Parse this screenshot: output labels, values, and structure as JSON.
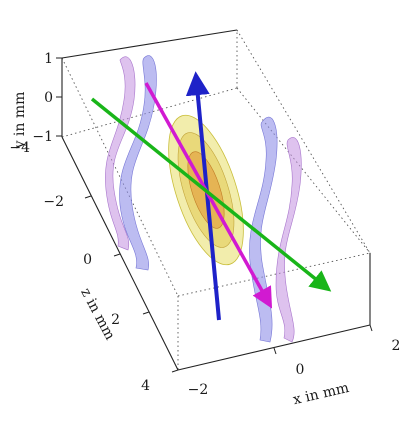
{
  "axes": {
    "y": {
      "label": "y in mm",
      "ticks": [
        "1",
        "0",
        "−1"
      ]
    },
    "z": {
      "label": "z in mm",
      "ticks": [
        "−4",
        "−2",
        "0",
        "2",
        "4"
      ]
    },
    "x": {
      "label": "x in mm",
      "ticks": [
        "−2",
        "0",
        "2"
      ]
    }
  },
  "colors": {
    "arrow_blue": "#1e22c8",
    "arrow_magenta": "#d11ad1",
    "arrow_green": "#19b519",
    "wave_blue": "#8f8fe8",
    "wave_purple": "#c28fe0",
    "focus_yellow": "#e7df67",
    "focus_orange": "#e39b3a"
  }
}
